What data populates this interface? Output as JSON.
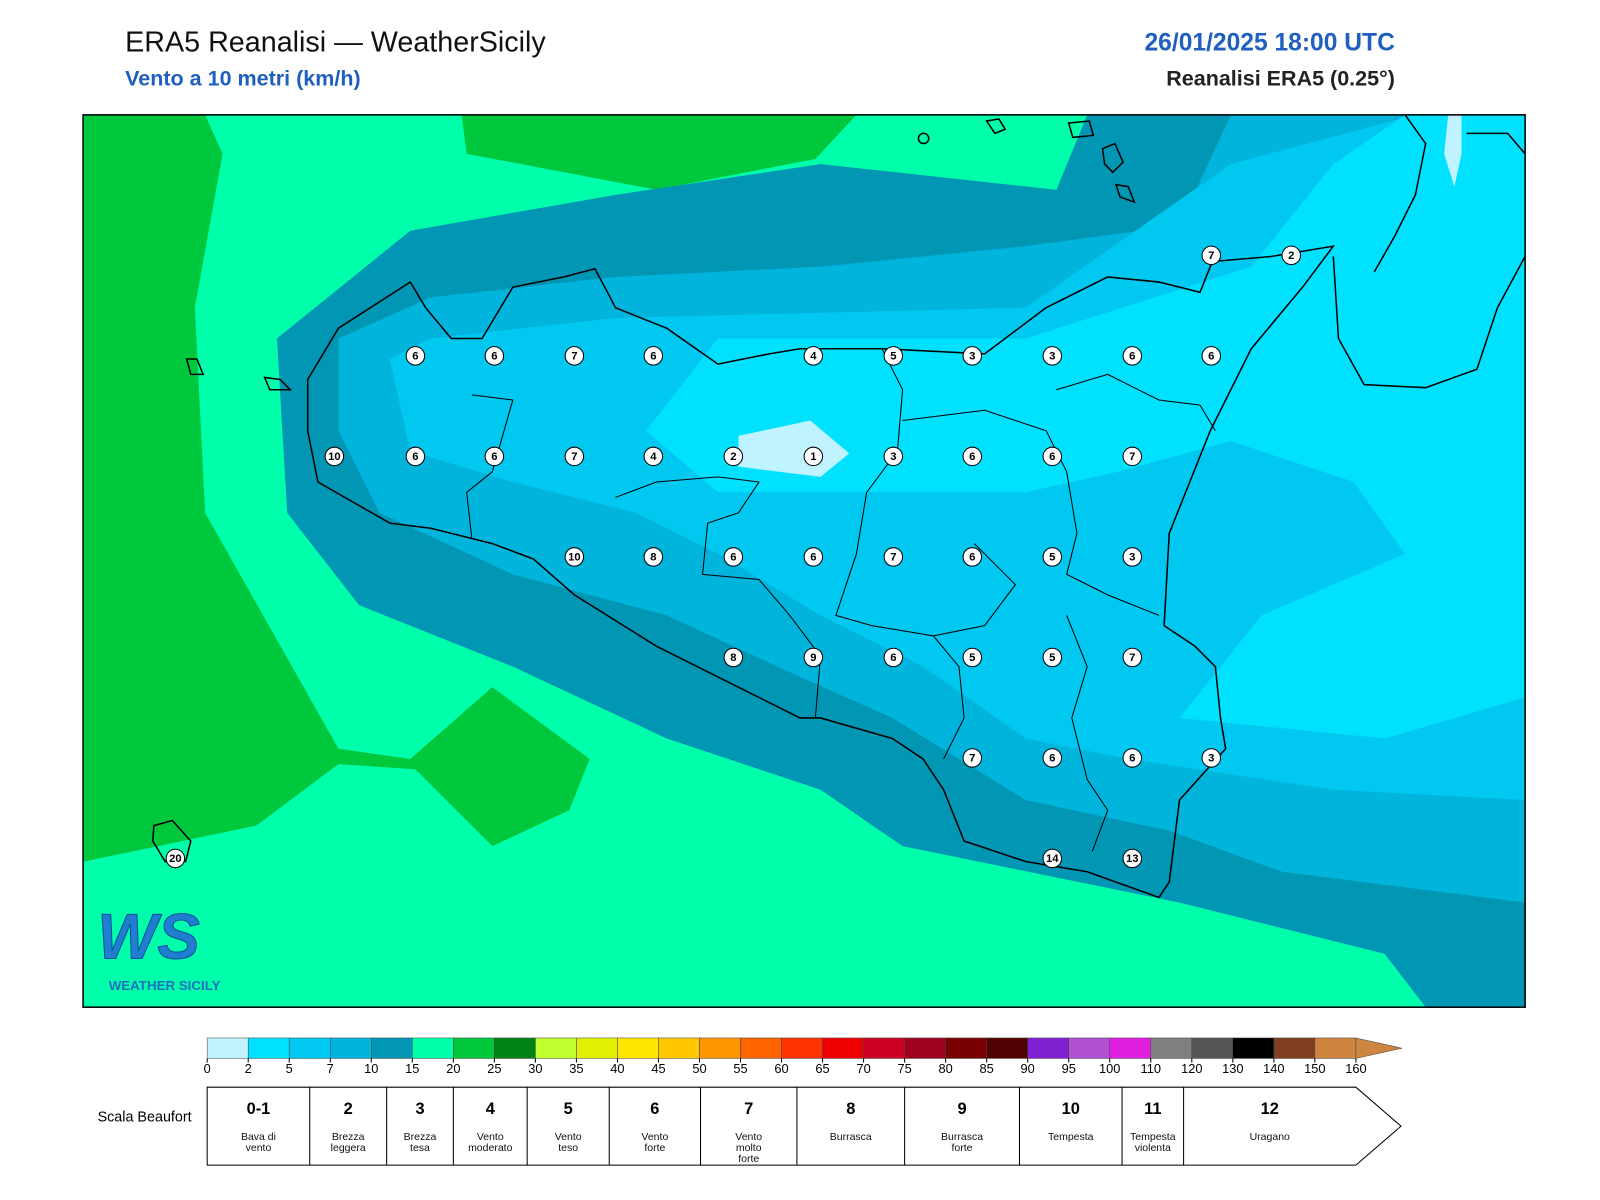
{
  "header": {
    "title": "ERA5 Reanalisi — WeatherSicily",
    "subtitle": "Vento a 10 metri (km/h)",
    "datetime": "26/01/2025 18:00 UTC",
    "source": "Reanalisi ERA5 (0.25°)"
  },
  "stations": [
    6,
    6,
    7,
    6,
    4,
    5,
    3,
    3,
    6,
    6,
    10,
    6,
    6,
    7,
    4,
    2,
    1,
    3,
    6,
    6,
    7,
    10,
    8,
    6,
    6,
    7,
    6,
    5,
    3,
    8,
    9,
    6,
    5,
    5,
    7,
    7,
    6,
    6,
    3,
    14,
    13,
    20,
    7,
    2
  ],
  "colorbar": {
    "ticks": [
      0,
      2,
      5,
      7,
      10,
      15,
      20,
      25,
      30,
      35,
      40,
      45,
      50,
      55,
      60,
      65,
      70,
      75,
      80,
      85,
      90,
      95,
      100,
      110,
      120,
      130,
      140,
      150,
      160
    ],
    "colors": [
      "#bff3ff",
      "#00e1ff",
      "#00c8f0",
      "#00b4dc",
      "#0096b4",
      "#00ffaa",
      "#00c83c",
      "#008214",
      "#c0ff30",
      "#e0f000",
      "#ffe600",
      "#ffc800",
      "#ff9600",
      "#ff6400",
      "#ff3200",
      "#ee0000",
      "#cc0022",
      "#a00020",
      "#780000",
      "#500000",
      "#8020d0",
      "#b050d0",
      "#e020e0",
      "#808080",
      "#555555",
      "#000000",
      "#804020",
      "#cd853f"
    ]
  },
  "beaufort": {
    "title": "Scala Beaufort",
    "levels": [
      {
        "force": "0-1",
        "label": "Bava di vento"
      },
      {
        "force": "2",
        "label": "Brezza leggera"
      },
      {
        "force": "3",
        "label": "Brezza tesa"
      },
      {
        "force": "4",
        "label": "Vento moderato"
      },
      {
        "force": "5",
        "label": "Vento teso"
      },
      {
        "force": "6",
        "label": "Vento forte"
      },
      {
        "force": "7",
        "label": "Vento molto forte"
      },
      {
        "force": "8",
        "label": "Burrasca"
      },
      {
        "force": "9",
        "label": "Burrasca forte"
      },
      {
        "force": "10",
        "label": "Tempesta"
      },
      {
        "force": "11",
        "label": "Tempesta violenta"
      },
      {
        "force": "12",
        "label": "Uragano"
      }
    ]
  },
  "logo": {
    "mark": "WS",
    "name": "WEATHER SICILY"
  }
}
